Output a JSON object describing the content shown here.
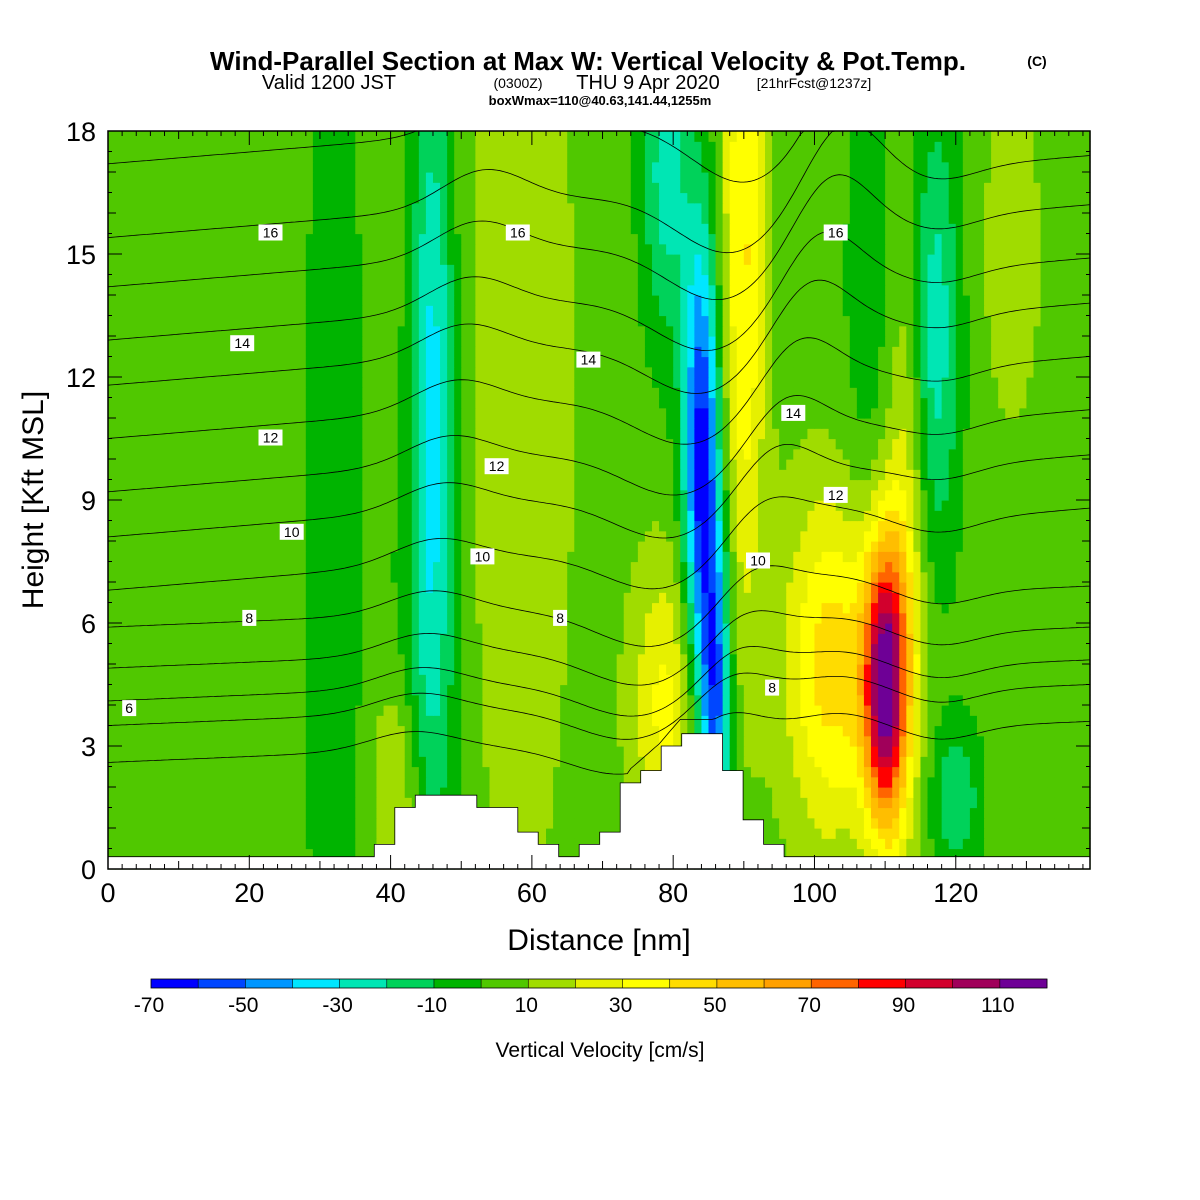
{
  "header": {
    "title": "Wind-Parallel Section at Max W: Vertical Velocity & Pot.Temp.",
    "title_mark": "(C)",
    "valid_a": "Valid 1200 JST",
    "valid_b": "(0300Z)",
    "valid_c": "THU 9 Apr 2020",
    "valid_d": "[21hrFcst@1237z]",
    "box_info": "boxWmax=110@40.63,141.44,1255m"
  },
  "chart_data": {
    "type": "heatmap",
    "xlabel": "Distance [nm]",
    "ylabel": "Height [Kft MSL]",
    "xlim": [
      0,
      139
    ],
    "ylim": [
      0,
      18
    ],
    "x_ticks": [
      0,
      20,
      40,
      60,
      80,
      100,
      120
    ],
    "x_ticklabels": [
      "0",
      "20",
      "40",
      "60",
      "80",
      "100",
      "120"
    ],
    "y_ticks": [
      0,
      3,
      6,
      9,
      12,
      15,
      18
    ],
    "y_ticklabels": [
      "0",
      "3",
      "6",
      "9",
      "12",
      "15",
      "18"
    ],
    "colorbar": {
      "label": "Vertical Velocity [cm/s]",
      "levels": [
        -70,
        -60,
        -50,
        -40,
        -30,
        -20,
        -10,
        0,
        10,
        20,
        30,
        40,
        50,
        60,
        70,
        80,
        90,
        100,
        110,
        120
      ],
      "colors": [
        "#0000ff",
        "#0046ff",
        "#0096ff",
        "#00e6ff",
        "#00e6b4",
        "#00d25a",
        "#00b400",
        "#50c800",
        "#a0dc00",
        "#e6f000",
        "#ffff00",
        "#ffdc00",
        "#ffbe00",
        "#ffa000",
        "#ff6400",
        "#ff0000",
        "#d2002d",
        "#a0005a",
        "#6e0096"
      ],
      "tick_values": [
        -70,
        -50,
        -30,
        -10,
        10,
        30,
        50,
        70,
        90,
        110
      ],
      "tick_labels": [
        "-70",
        "-50",
        "-30",
        "-10",
        "10",
        "30",
        "50",
        "70",
        "90",
        "110"
      ]
    },
    "background_value": 5,
    "w_features": [
      {
        "x": 46,
        "z": 12,
        "sx": 2.2,
        "sz": 6.0,
        "w": -38
      },
      {
        "x": 45,
        "z": 4,
        "sx": 3.5,
        "sz": 4.0,
        "w": -14
      },
      {
        "x": 84,
        "z": 10,
        "sx": 1.8,
        "sz": 4.0,
        "w": -70
      },
      {
        "x": 86,
        "z": 4,
        "sx": 1.5,
        "sz": 3.0,
        "w": -55
      },
      {
        "x": 79,
        "z": 17,
        "sx": 2.5,
        "sz": 3.0,
        "w": -30
      },
      {
        "x": 117,
        "z": 13,
        "sx": 2.5,
        "sz": 4.0,
        "w": -32
      },
      {
        "x": 120,
        "z": 1.7,
        "sx": 2.5,
        "sz": 1.3,
        "w": -25
      },
      {
        "x": 32,
        "z": 8,
        "sx": 3.0,
        "sz": 12.0,
        "w": -12
      },
      {
        "x": 108,
        "z": 11,
        "sx": 3.0,
        "sz": 8.0,
        "w": -12
      },
      {
        "x": 110,
        "z": 4.5,
        "sx": 2.2,
        "sz": 2.5,
        "w": 108
      },
      {
        "x": 103,
        "z": 5,
        "sx": 5.0,
        "sz": 3.0,
        "w": 42
      },
      {
        "x": 113,
        "z": 9,
        "sx": 2.2,
        "sz": 5.0,
        "w": 22
      },
      {
        "x": 90,
        "z": 15,
        "sx": 2.2,
        "sz": 6.0,
        "w": 36
      },
      {
        "x": 79,
        "z": 4.0,
        "sx": 3.5,
        "sz": 2.5,
        "w": 28
      },
      {
        "x": 58,
        "z": 12,
        "sx": 6.0,
        "sz": 10.0,
        "w": 12
      },
      {
        "x": 41,
        "z": 2,
        "sx": 2.5,
        "sz": 2.0,
        "w": 20
      },
      {
        "x": 128,
        "z": 15,
        "sx": 3.0,
        "sz": 3.0,
        "w": 12
      }
    ],
    "terrain": [
      {
        "x": 0,
        "z": 0.3
      },
      {
        "x": 38,
        "z": 0.3
      },
      {
        "x": 39,
        "z": 0.6
      },
      {
        "x": 42,
        "z": 1.5
      },
      {
        "x": 46,
        "z": 1.9
      },
      {
        "x": 52,
        "z": 1.6
      },
      {
        "x": 58,
        "z": 1.3
      },
      {
        "x": 61,
        "z": 0.6
      },
      {
        "x": 64,
        "z": 0.3
      },
      {
        "x": 68,
        "z": 0.6
      },
      {
        "x": 71,
        "z": 1.0
      },
      {
        "x": 74,
        "z": 2.0
      },
      {
        "x": 78,
        "z": 2.6
      },
      {
        "x": 81,
        "z": 3.2
      },
      {
        "x": 87,
        "z": 3.2
      },
      {
        "x": 90,
        "z": 1.6
      },
      {
        "x": 94,
        "z": 0.6
      },
      {
        "x": 97,
        "z": 0.3
      },
      {
        "x": 139,
        "z": 0.3
      }
    ],
    "isentropes": [
      {
        "theta": 4,
        "z_left": 2.6,
        "labeled": false
      },
      {
        "theta": 5,
        "z_left": 3.5,
        "labeled": false
      },
      {
        "theta": 6,
        "z_left": 4.1,
        "labeled": true
      },
      {
        "theta": 7,
        "z_left": 4.9,
        "labeled": false
      },
      {
        "theta": 8,
        "z_left": 5.9,
        "labeled": true
      },
      {
        "theta": 9,
        "z_left": 6.8,
        "labeled": false
      },
      {
        "theta": 10,
        "z_left": 8.1,
        "labeled": true
      },
      {
        "theta": 11,
        "z_left": 9.2,
        "labeled": false
      },
      {
        "theta": 12,
        "z_left": 10.5,
        "labeled": true
      },
      {
        "theta": 13,
        "z_left": 11.8,
        "labeled": false
      },
      {
        "theta": 14,
        "z_left": 12.9,
        "labeled": true
      },
      {
        "theta": 15,
        "z_left": 14.2,
        "labeled": false
      },
      {
        "theta": 16,
        "z_left": 15.4,
        "labeled": true
      },
      {
        "theta": 17,
        "z_left": 17.2,
        "labeled": false
      }
    ],
    "isentrope_labels": [
      {
        "text": "6",
        "x": 3,
        "z": 3.9
      },
      {
        "text": "8",
        "x": 20,
        "z": 6.1
      },
      {
        "text": "8",
        "x": 64,
        "z": 6.1
      },
      {
        "text": "8",
        "x": 94,
        "z": 4.4
      },
      {
        "text": "10",
        "x": 26,
        "z": 8.2
      },
      {
        "text": "10",
        "x": 53,
        "z": 7.6
      },
      {
        "text": "10",
        "x": 92,
        "z": 7.5
      },
      {
        "text": "12",
        "x": 23,
        "z": 10.5
      },
      {
        "text": "12",
        "x": 55,
        "z": 9.8
      },
      {
        "text": "12",
        "x": 103,
        "z": 9.1
      },
      {
        "text": "14",
        "x": 19,
        "z": 12.8
      },
      {
        "text": "14",
        "x": 68,
        "z": 12.4
      },
      {
        "text": "14",
        "x": 97,
        "z": 11.1
      },
      {
        "text": "16",
        "x": 23,
        "z": 15.5
      },
      {
        "text": "16",
        "x": 58,
        "z": 15.5
      },
      {
        "text": "16",
        "x": 103,
        "z": 15.5
      }
    ]
  }
}
